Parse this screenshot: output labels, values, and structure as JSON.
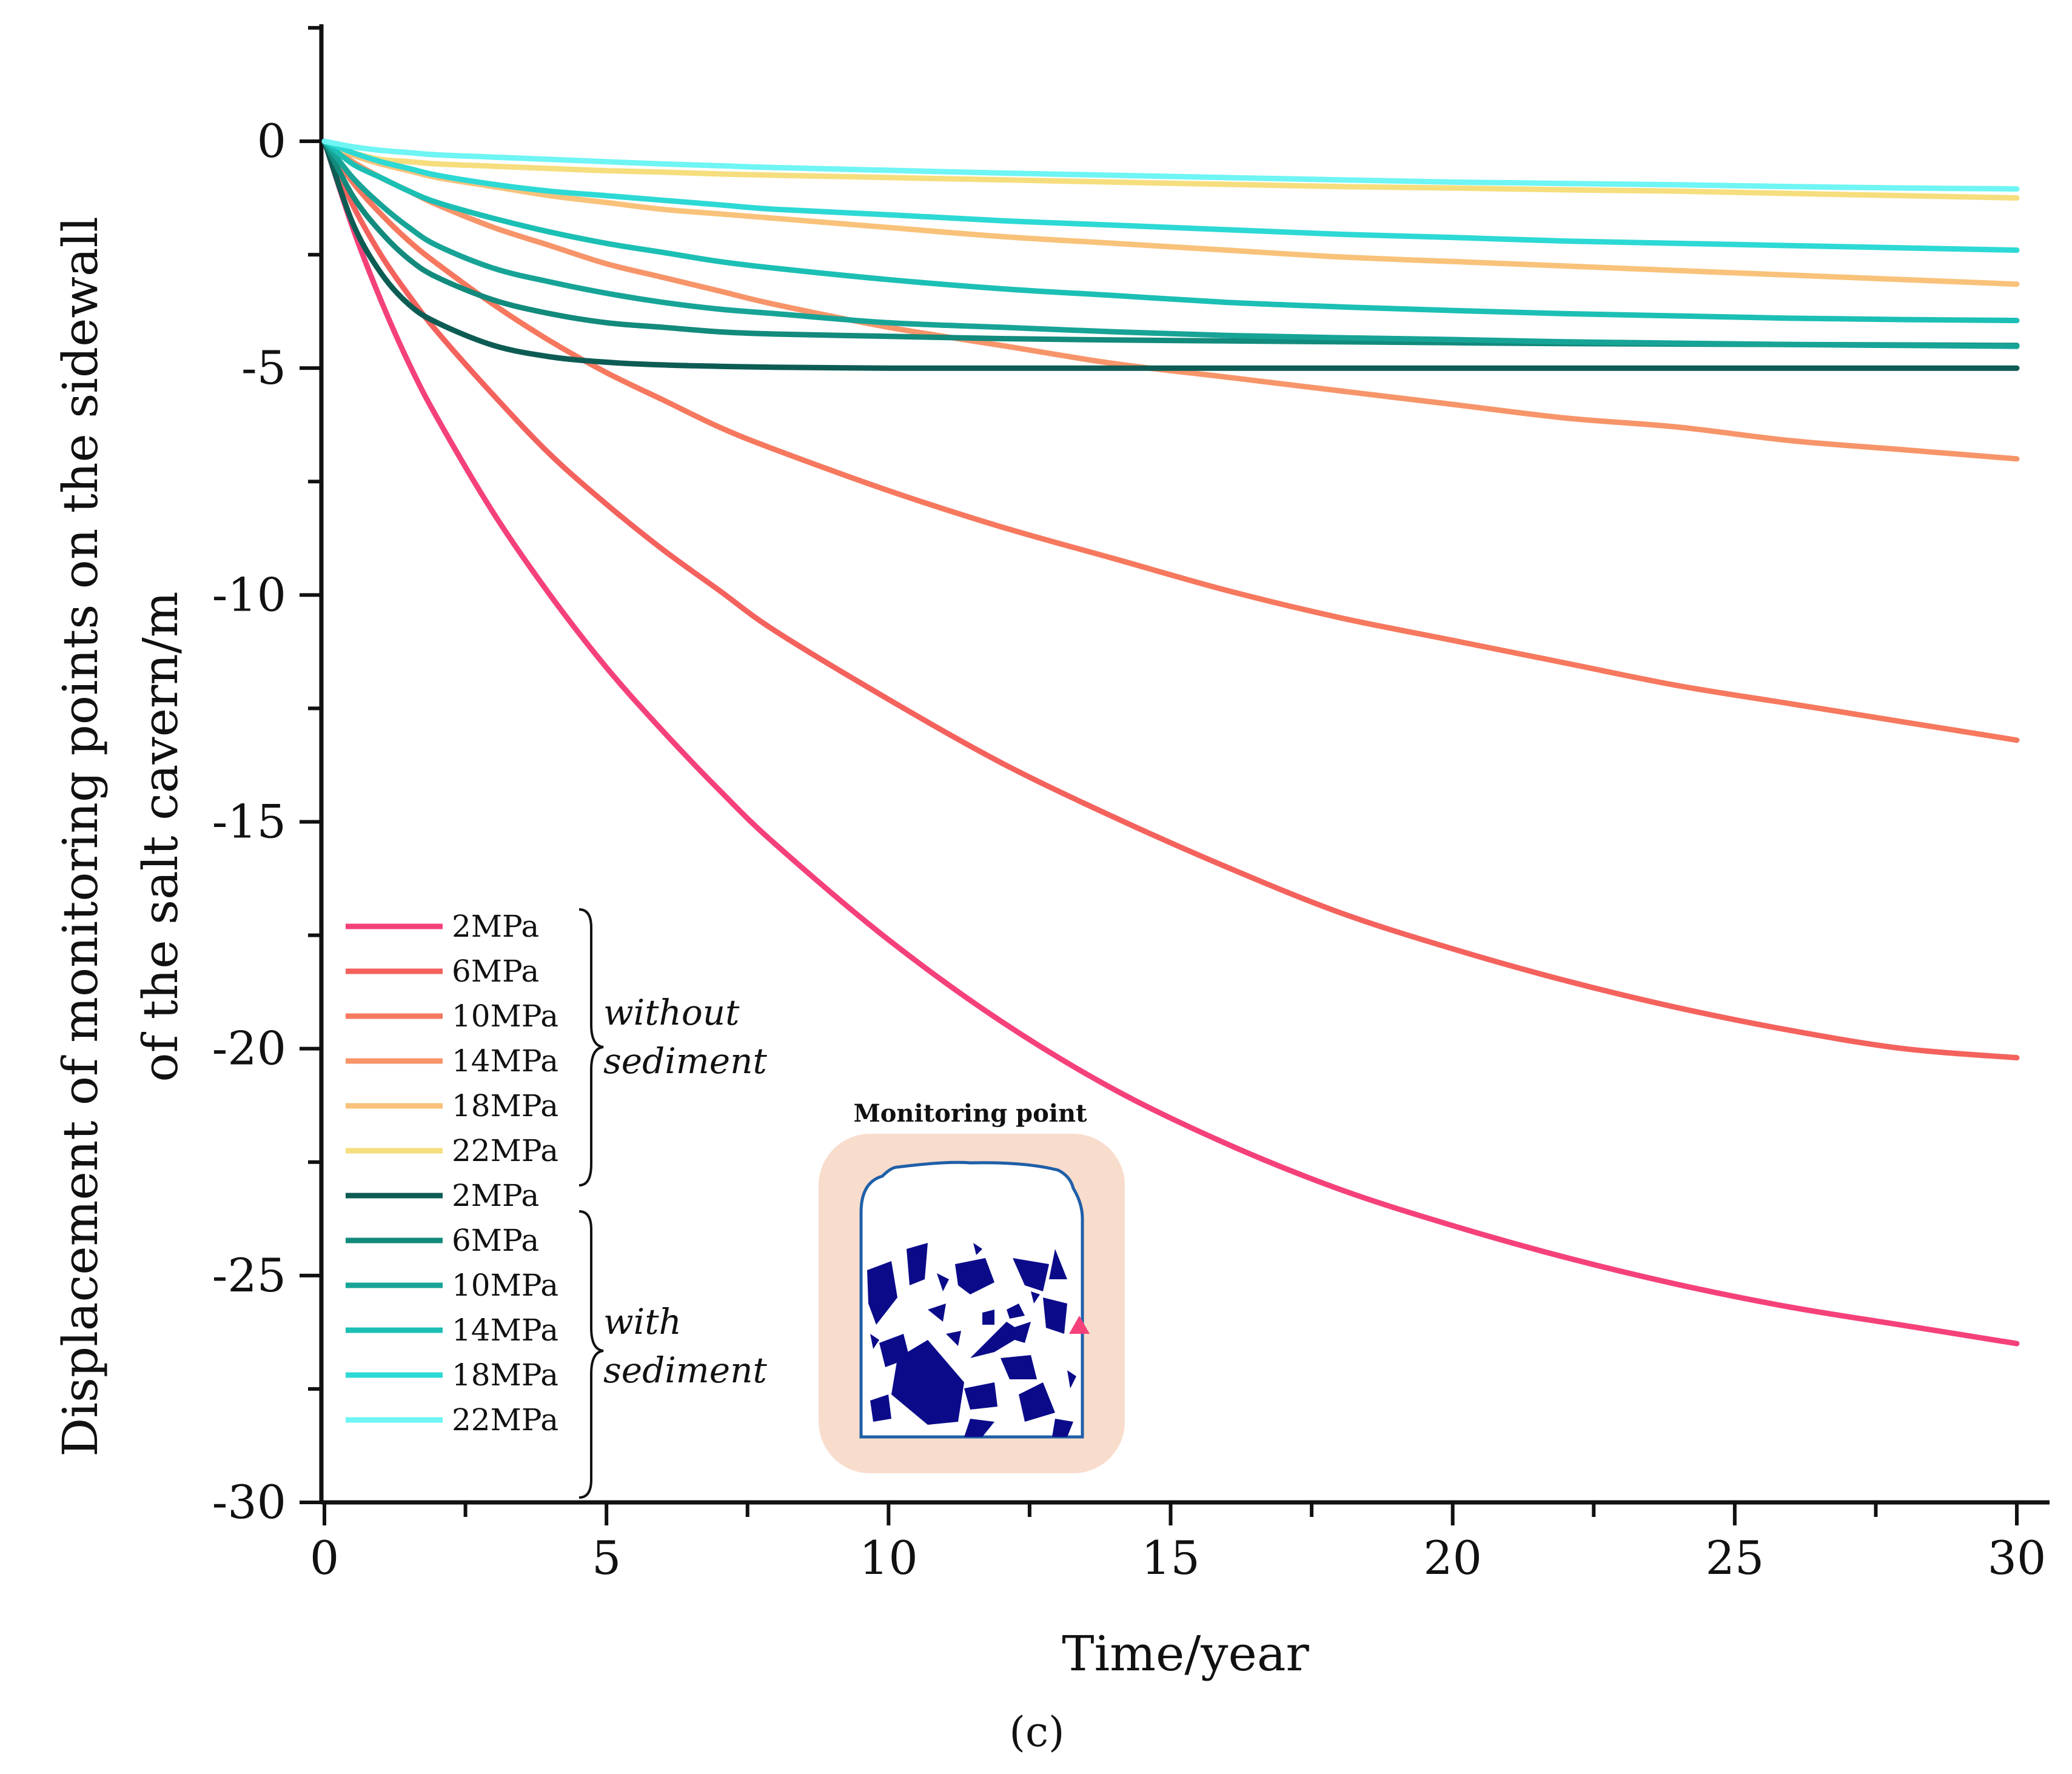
{
  "chart_data": {
    "type": "line",
    "title": "",
    "xlabel": "Time/year",
    "ylabel_line1": "Displacement of monitoring points on the sidewall",
    "ylabel_line2": "of the salt cavern/m",
    "xlim": [
      0,
      30
    ],
    "ylim": [
      -30,
      2.5
    ],
    "xticks": [
      0,
      5,
      10,
      15,
      20,
      25,
      30
    ],
    "yticks": [
      0,
      -5,
      -10,
      -15,
      -20,
      -25,
      -30
    ],
    "xtick_labels": [
      "0",
      "5",
      "10",
      "15",
      "20",
      "25",
      "30"
    ],
    "ytick_labels": [
      "0",
      "-5",
      "-10",
      "-15",
      "-20",
      "-25",
      "-30"
    ],
    "x": [
      0,
      0.5,
      1,
      1.5,
      2,
      3,
      4,
      5,
      6,
      7,
      8,
      10,
      12,
      14,
      16,
      18,
      20,
      22,
      24,
      26,
      28,
      30
    ],
    "series": [
      {
        "name": "2MPa",
        "group": "without sediment",
        "color": "#f5417a",
        "values": [
          0,
          -1.9,
          -3.5,
          -4.9,
          -6.1,
          -8.2,
          -10.0,
          -11.6,
          -13.0,
          -14.3,
          -15.5,
          -17.6,
          -19.4,
          -20.9,
          -22.1,
          -23.1,
          -23.9,
          -24.6,
          -25.2,
          -25.7,
          -26.1,
          -26.5
        ]
      },
      {
        "name": "6MPa",
        "group": "without sediment",
        "color": "#f4625d",
        "values": [
          0,
          -1.4,
          -2.5,
          -3.4,
          -4.2,
          -5.6,
          -6.9,
          -8.0,
          -9.0,
          -9.9,
          -10.8,
          -12.3,
          -13.7,
          -14.9,
          -16.0,
          -17.0,
          -17.8,
          -18.5,
          -19.1,
          -19.6,
          -20.0,
          -20.2
        ]
      },
      {
        "name": "10MPa",
        "group": "without sediment",
        "color": "#f6785e",
        "values": [
          0,
          -0.9,
          -1.6,
          -2.2,
          -2.7,
          -3.6,
          -4.4,
          -5.1,
          -5.7,
          -6.3,
          -6.8,
          -7.7,
          -8.5,
          -9.2,
          -9.9,
          -10.5,
          -11.0,
          -11.5,
          -12.0,
          -12.4,
          -12.8,
          -13.2
        ]
      },
      {
        "name": "14MPa",
        "group": "without sediment",
        "color": "#f7956a",
        "values": [
          0,
          -0.45,
          -0.8,
          -1.1,
          -1.4,
          -1.9,
          -2.3,
          -2.7,
          -3.0,
          -3.3,
          -3.6,
          -4.1,
          -4.5,
          -4.9,
          -5.2,
          -5.5,
          -5.8,
          -6.1,
          -6.3,
          -6.6,
          -6.8,
          -7.0
        ]
      },
      {
        "name": "18MPa",
        "group": "without sediment",
        "color": "#f9c27a",
        "values": [
          0,
          -0.3,
          -0.5,
          -0.65,
          -0.8,
          -1.0,
          -1.2,
          -1.35,
          -1.5,
          -1.6,
          -1.7,
          -1.9,
          -2.1,
          -2.25,
          -2.4,
          -2.55,
          -2.65,
          -2.75,
          -2.85,
          -2.95,
          -3.05,
          -3.15
        ]
      },
      {
        "name": "22MPa",
        "group": "without sediment",
        "color": "#f6de7e",
        "values": [
          0,
          -0.25,
          -0.4,
          -0.45,
          -0.5,
          -0.55,
          -0.6,
          -0.65,
          -0.68,
          -0.72,
          -0.75,
          -0.8,
          -0.85,
          -0.9,
          -0.95,
          -1.0,
          -1.03,
          -1.07,
          -1.1,
          -1.15,
          -1.2,
          -1.25
        ]
      },
      {
        "name": "2MPa",
        "group": "with sediment",
        "color": "#0d5c54",
        "values": [
          0,
          -1.8,
          -2.9,
          -3.6,
          -4.0,
          -4.5,
          -4.75,
          -4.87,
          -4.93,
          -4.96,
          -4.98,
          -5.0,
          -5.0,
          -5.0,
          -5.0,
          -5.0,
          -5.0,
          -5.0,
          -5.0,
          -5.0,
          -5.0,
          -5.0
        ]
      },
      {
        "name": "6MPa",
        "group": "with sediment",
        "color": "#128a7c",
        "values": [
          0,
          -1.2,
          -2.0,
          -2.6,
          -3.0,
          -3.5,
          -3.8,
          -4.0,
          -4.1,
          -4.2,
          -4.25,
          -4.3,
          -4.35,
          -4.38,
          -4.4,
          -4.42,
          -4.44,
          -4.46,
          -4.47,
          -4.48,
          -4.49,
          -4.5
        ]
      },
      {
        "name": "10MPa",
        "group": "with sediment",
        "color": "#17a497",
        "values": [
          0,
          -0.8,
          -1.4,
          -1.9,
          -2.3,
          -2.8,
          -3.1,
          -3.35,
          -3.55,
          -3.7,
          -3.8,
          -4.0,
          -4.1,
          -4.2,
          -4.28,
          -4.33,
          -4.37,
          -4.42,
          -4.45,
          -4.48,
          -4.5,
          -4.52
        ]
      },
      {
        "name": "14MPa",
        "group": "with sediment",
        "color": "#1cbfb4",
        "values": [
          0,
          -0.5,
          -0.8,
          -1.1,
          -1.35,
          -1.7,
          -2.0,
          -2.25,
          -2.45,
          -2.65,
          -2.8,
          -3.05,
          -3.25,
          -3.4,
          -3.55,
          -3.65,
          -3.73,
          -3.8,
          -3.85,
          -3.9,
          -3.93,
          -3.95
        ]
      },
      {
        "name": "18MPa",
        "group": "with sediment",
        "color": "#2dd9d4",
        "values": [
          0,
          -0.25,
          -0.45,
          -0.6,
          -0.75,
          -0.95,
          -1.1,
          -1.2,
          -1.3,
          -1.4,
          -1.5,
          -1.62,
          -1.75,
          -1.85,
          -1.95,
          -2.05,
          -2.12,
          -2.2,
          -2.25,
          -2.3,
          -2.35,
          -2.4
        ]
      },
      {
        "name": "22MPa",
        "group": "with sediment",
        "color": "#6ef5f4",
        "values": [
          0,
          -0.12,
          -0.2,
          -0.25,
          -0.3,
          -0.35,
          -0.4,
          -0.45,
          -0.5,
          -0.54,
          -0.58,
          -0.64,
          -0.7,
          -0.75,
          -0.8,
          -0.85,
          -0.9,
          -0.93,
          -0.96,
          -1.0,
          -1.03,
          -1.05
        ]
      }
    ],
    "legend_groups": [
      "without",
      "sediment",
      "with",
      "sediment"
    ],
    "inset_title": "Monitoring point",
    "caption": "(c)"
  }
}
